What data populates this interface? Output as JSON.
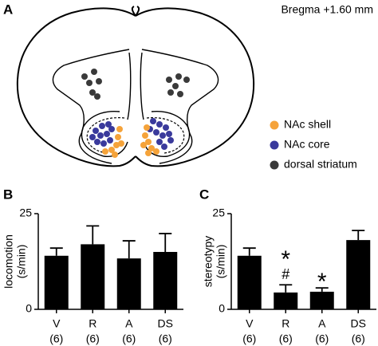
{
  "panel_a": {
    "label": "A",
    "subtitle": "Bregma +1.60 mm",
    "legend": [
      {
        "name": "NAc shell",
        "color": "#f5a33a"
      },
      {
        "name": "NAc core",
        "color": "#3a3a9c"
      },
      {
        "name": "dorsal striatum",
        "color": "#3a3a3a"
      }
    ]
  },
  "chart_data": [
    {
      "type": "bar",
      "panel_label": "B",
      "ylabel": [
        "locomotion",
        "(s/min)"
      ],
      "categories": [
        "V",
        "R",
        "A",
        "DS"
      ],
      "n_labels": [
        "(6)",
        "(6)",
        "(6)",
        "(6)"
      ],
      "values": [
        14,
        17,
        13.3,
        15
      ],
      "errors": [
        2,
        4.8,
        4.6,
        4.8
      ],
      "color": "#000000",
      "ylim": [
        0,
        25
      ],
      "yticks": [
        0,
        25
      ]
    },
    {
      "type": "bar",
      "panel_label": "C",
      "ylabel": [
        "stereotypy",
        "(s/min)"
      ],
      "categories": [
        "V",
        "R",
        "A",
        "DS"
      ],
      "n_labels": [
        "(6)",
        "(6)",
        "(6)",
        "(6)"
      ],
      "values": [
        14,
        4.4,
        4.6,
        18.1
      ],
      "errors": [
        2,
        2,
        1,
        2.5
      ],
      "color": "#000000",
      "annotations": [
        null,
        [
          "*",
          "#"
        ],
        [
          "*"
        ],
        null
      ],
      "ylim": [
        0,
        25
      ],
      "yticks": [
        0,
        25
      ]
    }
  ]
}
